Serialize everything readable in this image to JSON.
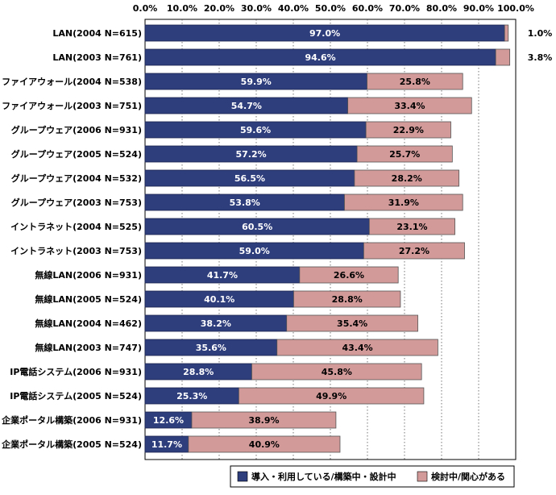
{
  "chart_data": {
    "type": "bar",
    "orientation": "horizontal",
    "stacked": true,
    "xlim": [
      0,
      100
    ],
    "x_ticks": [
      "0.0%",
      "10.0%",
      "20.0%",
      "30.0%",
      "40.0%",
      "50.0%",
      "60.0%",
      "70.0%",
      "80.0%",
      "90.0%",
      "100.0%"
    ],
    "grid": "vertical dotted",
    "legend_position": "bottom-right",
    "colors": {
      "series1": "#2e3d7c",
      "series2": "#d39a9a"
    },
    "categories": [
      "LAN(2004 N=615)",
      "LAN(2003 N=761)",
      "ファイアウォール(2004 N=538)",
      "ファイアウォール(2003 N=751)",
      "グループウェア(2006 N=931)",
      "グループウェア(2005 N=524)",
      "グループウェア(2004 N=532)",
      "グループウェア(2003 N=753)",
      "イントラネット(2004 N=525)",
      "イントラネット(2003 N=753)",
      "無線LAN(2006 N=931)",
      "無線LAN(2005 N=524)",
      "無線LAN(2004 N=462)",
      "無線LAN(2003 N=747)",
      "IP電話システム(2006 N=931)",
      "IP電話システム(2005 N=524)",
      "企業ポータル構築(2006 N=931)",
      "企業ポータル構築(2005 N=524)"
    ],
    "series": [
      {
        "name": "導入・利用している/構築中・設計中",
        "values": [
          97.0,
          94.6,
          59.9,
          54.7,
          59.6,
          57.2,
          56.5,
          53.8,
          60.5,
          59.0,
          41.7,
          40.1,
          38.2,
          35.6,
          28.8,
          25.3,
          12.6,
          11.7
        ],
        "labels": [
          "97.0%",
          "94.6%",
          "59.9%",
          "54.7%",
          "59.6%",
          "57.2%",
          "56.5%",
          "53.8%",
          "60.5%",
          "59.0%",
          "41.7%",
          "40.1%",
          "38.2%",
          "35.6%",
          "28.8%",
          "25.3%",
          "12.6%",
          "11.7%"
        ]
      },
      {
        "name": "検討中/関心がある",
        "values": [
          1.0,
          3.8,
          25.8,
          33.4,
          22.9,
          25.7,
          28.2,
          31.9,
          23.1,
          27.2,
          26.6,
          28.8,
          35.4,
          43.4,
          45.8,
          49.9,
          38.9,
          40.9
        ],
        "labels": [
          "1.0%",
          "3.8%",
          "25.8%",
          "33.4%",
          "22.9%",
          "25.7%",
          "28.2%",
          "31.9%",
          "23.1%",
          "27.2%",
          "26.6%",
          "28.8%",
          "35.4%",
          "43.4%",
          "45.8%",
          "49.9%",
          "38.9%",
          "40.9%"
        ],
        "label_outside": [
          true,
          true,
          false,
          false,
          false,
          false,
          false,
          false,
          false,
          false,
          false,
          false,
          false,
          false,
          false,
          false,
          false,
          false
        ]
      }
    ],
    "legend": [
      "導入・利用している/構築中・設計中",
      "検討中/関心がある"
    ]
  }
}
